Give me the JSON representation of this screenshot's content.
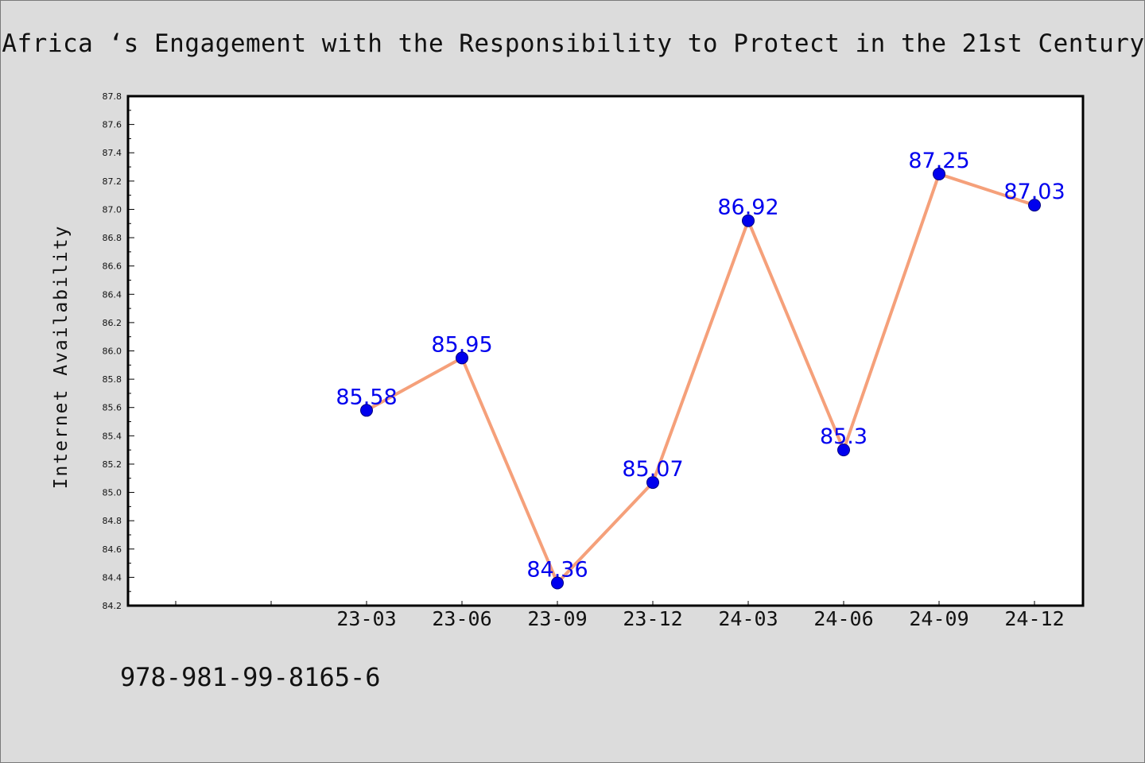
{
  "chart_data": {
    "type": "line",
    "title": "Africa ‘s Engagement with the Responsibility to Protect in the 21st Century",
    "ylabel": "Internet Availability",
    "xlabel": "",
    "categories": [
      "23-03",
      "23-06",
      "23-09",
      "23-12",
      "24-03",
      "24-06",
      "24-09",
      "24-12"
    ],
    "series": [
      {
        "values": [
          85.58,
          85.95,
          84.36,
          85.07,
          86.92,
          85.3,
          87.25,
          87.03
        ],
        "data_labels": [
          "85.58",
          "85.95",
          "84.36",
          "85.07",
          "86.92",
          "85.3",
          "87.25",
          "87.03"
        ]
      }
    ],
    "ylim": [
      84.2,
      87.8
    ],
    "yticks": [
      "84.2",
      "84.4",
      "84.6",
      "84.8",
      "85.0",
      "85.2",
      "85.4",
      "85.6",
      "85.8",
      "86.0",
      "86.2",
      "86.4",
      "86.6",
      "86.8",
      "87.0",
      "87.2",
      "87.4",
      "87.6",
      "87.8"
    ],
    "grid": false,
    "legend": "none",
    "colors": {
      "line": "#f5a07a",
      "marker": "#0000ee",
      "label": "#0000ee",
      "plot_background": "#ffffff",
      "page_background": "#dcdcdc"
    }
  },
  "footer_text": "978-981-99-8165-6"
}
